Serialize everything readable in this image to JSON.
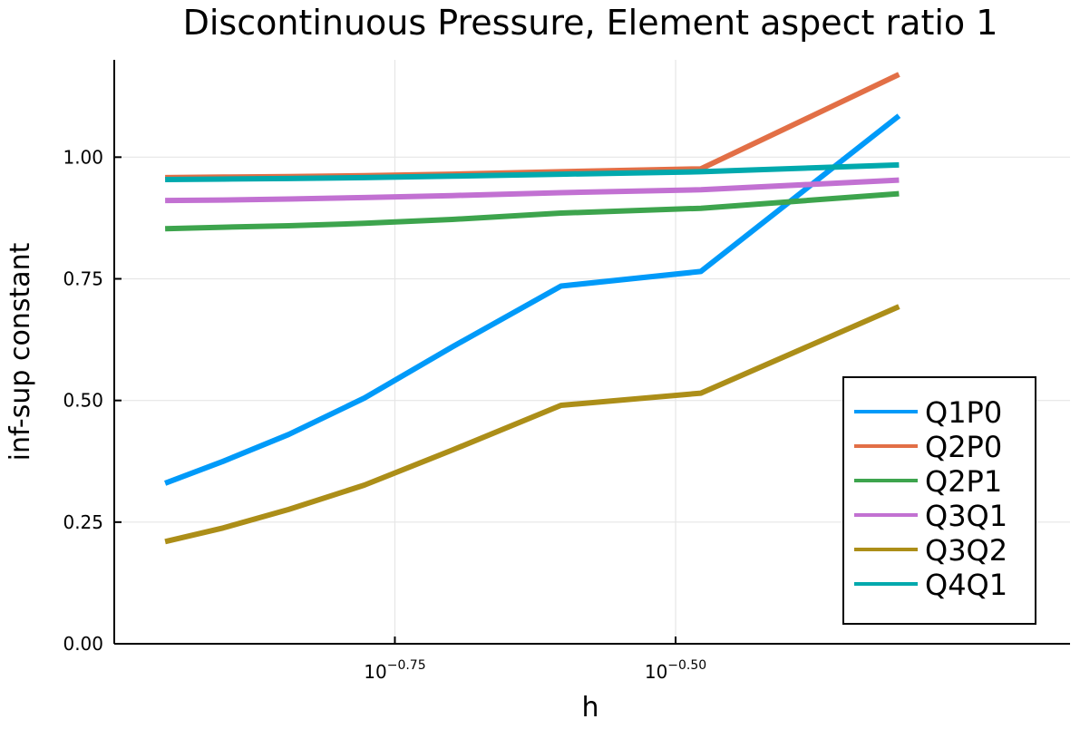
{
  "chart_data": {
    "type": "line",
    "title": "Discontinuous Pressure, Element aspect ratio 1",
    "xlabel": "h",
    "ylabel": "inf-sup constant",
    "xscale": "log10",
    "ylim": [
      0,
      1.2
    ],
    "xlim": [
      0.1,
      0.71
    ],
    "yticks": [
      0.0,
      0.25,
      0.5,
      0.75,
      1.0
    ],
    "yticklabels": [
      "0.00",
      "0.25",
      "0.50",
      "0.75",
      "1.00"
    ],
    "xticks": [
      {
        "value": 0.1778,
        "base": "10",
        "exponent": "−0.75"
      },
      {
        "value": 0.3162,
        "base": "10",
        "exponent": "−0.50"
      }
    ],
    "grid": true,
    "legend_position": "bottom-right",
    "series": [
      {
        "name": "Q1P0",
        "color": "#009af9",
        "x": [
          0.111,
          0.125,
          0.143,
          0.167,
          0.2,
          0.25,
          0.333,
          0.5
        ],
        "y": [
          0.33,
          0.375,
          0.43,
          0.505,
          0.61,
          0.735,
          0.765,
          1.085
        ]
      },
      {
        "name": "Q2P0",
        "color": "#e26f46",
        "x": [
          0.111,
          0.125,
          0.143,
          0.167,
          0.2,
          0.25,
          0.333,
          0.5
        ],
        "y": [
          0.958,
          0.959,
          0.96,
          0.962,
          0.965,
          0.97,
          0.976,
          1.17
        ]
      },
      {
        "name": "Q2P1",
        "color": "#3da44d",
        "x": [
          0.111,
          0.125,
          0.143,
          0.167,
          0.2,
          0.25,
          0.333,
          0.5
        ],
        "y": [
          0.853,
          0.856,
          0.859,
          0.864,
          0.872,
          0.885,
          0.895,
          0.925
        ]
      },
      {
        "name": "Q3Q1",
        "color": "#c271d2",
        "x": [
          0.111,
          0.125,
          0.143,
          0.167,
          0.2,
          0.25,
          0.333,
          0.5
        ],
        "y": [
          0.911,
          0.912,
          0.914,
          0.917,
          0.921,
          0.927,
          0.933,
          0.953
        ]
      },
      {
        "name": "Q3Q2",
        "color": "#ac8e18",
        "x": [
          0.111,
          0.125,
          0.143,
          0.167,
          0.2,
          0.25,
          0.333,
          0.5
        ],
        "y": [
          0.21,
          0.238,
          0.276,
          0.326,
          0.398,
          0.49,
          0.515,
          0.693
        ]
      },
      {
        "name": "Q4Q1",
        "color": "#00a9ad",
        "x": [
          0.111,
          0.125,
          0.143,
          0.167,
          0.2,
          0.25,
          0.333,
          0.5
        ],
        "y": [
          0.954,
          0.955,
          0.956,
          0.958,
          0.961,
          0.965,
          0.97,
          0.984
        ]
      }
    ]
  }
}
